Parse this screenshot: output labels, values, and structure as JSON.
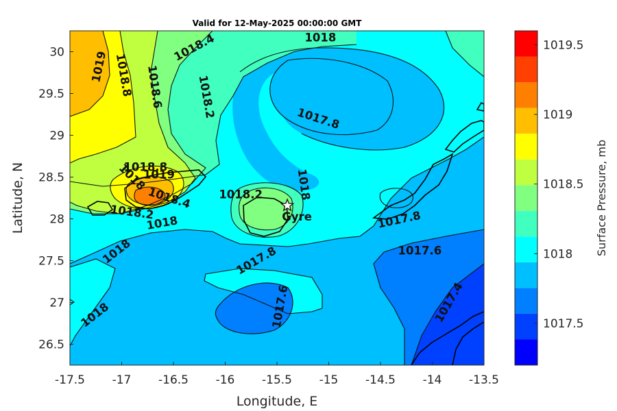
{
  "chart_data": {
    "type": "heatmap",
    "title": "Valid for 12-May-2025 00:00:00 GMT",
    "xlabel": "Longitude, E",
    "ylabel": "Latitude, N",
    "xlim": [
      -17.5,
      -13.5
    ],
    "ylim": [
      26.25,
      30.25
    ],
    "xticks": [
      -17.5,
      -17,
      -16.5,
      -16,
      -15.5,
      -15,
      -14.5,
      -14,
      -13.5
    ],
    "yticks": [
      26.5,
      27,
      27.5,
      28,
      28.5,
      29,
      29.5,
      30
    ],
    "colorbar": {
      "label": "Surface Pressure, mb",
      "range": [
        1017.2,
        1019.6
      ],
      "levels": [
        1017.2,
        1017.3,
        1017.4,
        1017.5,
        1017.6,
        1017.7,
        1017.8,
        1017.9,
        1018.0,
        1018.1,
        1018.2,
        1018.3,
        1018.4,
        1018.5,
        1018.6,
        1018.7,
        1018.8,
        1018.9,
        1019.0,
        1019.1,
        1019.2,
        1019.3,
        1019.4,
        1019.5,
        1019.6
      ],
      "ticks": [
        1017.5,
        1018,
        1018.5,
        1019,
        1019.5
      ],
      "colors": [
        "#0000ff",
        "#0040ff",
        "#0080ff",
        "#00bfff",
        "#00ffff",
        "#40ffbf",
        "#80ff80",
        "#bfff40",
        "#ffff00",
        "#ffbf00",
        "#ff8000",
        "#ff4000",
        "#ff0000"
      ]
    },
    "contour_labels": [
      {
        "text": "1019",
        "lon": -17.22,
        "lat": 29.82
      },
      {
        "text": "1018.8",
        "lon": -16.98,
        "lat": 29.72
      },
      {
        "text": "1018.6",
        "lon": -16.68,
        "lat": 29.58
      },
      {
        "text": "1018.4",
        "lon": -16.3,
        "lat": 30.05
      },
      {
        "text": "1018.2",
        "lon": -16.18,
        "lat": 29.46
      },
      {
        "text": "1018",
        "lon": -15.08,
        "lat": 30.17
      },
      {
        "text": "1017.8",
        "lon": -15.1,
        "lat": 29.2
      },
      {
        "text": "1018.8",
        "lon": -16.77,
        "lat": 28.62
      },
      {
        "text": "1019",
        "lon": -16.64,
        "lat": 28.53
      },
      {
        "text": "1018.4",
        "lon": -16.54,
        "lat": 28.25
      },
      {
        "text": "1018.2",
        "lon": -16.9,
        "lat": 28.08
      },
      {
        "text": "1018",
        "lon": -16.9,
        "lat": 28.5
      },
      {
        "text": "1018",
        "lon": -16.61,
        "lat": 27.95
      },
      {
        "text": "1018.2",
        "lon": -15.85,
        "lat": 28.29
      },
      {
        "text": "1018",
        "lon": -15.24,
        "lat": 28.41
      },
      {
        "text": "1017.8",
        "lon": -14.32,
        "lat": 27.99
      },
      {
        "text": "1017.6",
        "lon": -14.12,
        "lat": 27.62
      },
      {
        "text": "1018",
        "lon": -17.05,
        "lat": 27.61
      },
      {
        "text": "1017.8",
        "lon": -15.7,
        "lat": 27.5
      },
      {
        "text": "1017.6",
        "lon": -15.47,
        "lat": 26.95
      },
      {
        "text": "1018",
        "lon": -17.26,
        "lat": 26.85
      },
      {
        "text": "1017.4",
        "lon": -13.84,
        "lat": 27.0
      }
    ],
    "site": {
      "label": "Gyre",
      "lon": -15.4,
      "lat": 28.16
    }
  }
}
